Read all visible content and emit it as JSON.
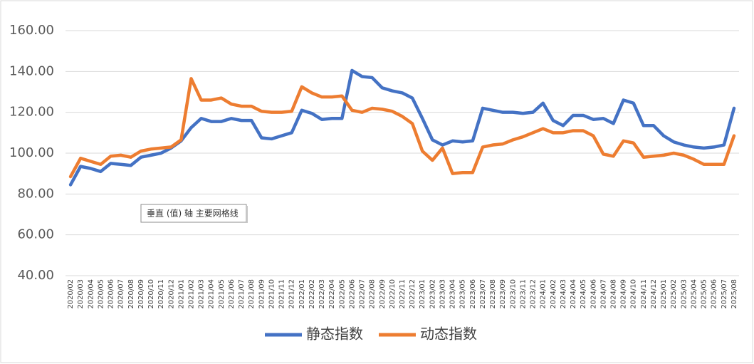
{
  "chart_data": {
    "type": "line",
    "categories": [
      "2020/02",
      "2020/03",
      "2020/04",
      "2020/05",
      "2020/06",
      "2020/07",
      "2020/08",
      "2020/09",
      "2020/10",
      "2020/11",
      "2020/12",
      "2021/01",
      "2021/02",
      "2021/03",
      "2021/04",
      "2021/05",
      "2021/06",
      "2021/07",
      "2021/08",
      "2021/09",
      "2021/10",
      "2021/11",
      "2021/12",
      "2022/01",
      "2022/02",
      "2022/03",
      "2022/04",
      "2022/05",
      "2022/06",
      "2022/07",
      "2022/08",
      "2022/09",
      "2022/10",
      "2022/11",
      "2022/12",
      "2023/01",
      "2023/02",
      "2023/03",
      "2023/04",
      "2023/05",
      "2023/06",
      "2023/07",
      "2023/08",
      "2023/09",
      "2023/10",
      "2023/11",
      "2023/12",
      "2024/01",
      "2024/02",
      "2024/03",
      "2024/04",
      "2024/05",
      "2024/06",
      "2024/07",
      "2024/08",
      "2024/09",
      "2024/10",
      "2024/11",
      "2024/12",
      "2025/01",
      "2025/02",
      "2025/03",
      "2025/04",
      "2025/05",
      "2025/06",
      "2025/07",
      "2025/08"
    ],
    "series": [
      {
        "name": "静态指数",
        "color": "#4472c4",
        "values": [
          84.5,
          93.5,
          92.5,
          91,
          95,
          94.5,
          94,
          98,
          99,
          100,
          102.5,
          106,
          112.5,
          117,
          115.5,
          115.5,
          117,
          116,
          116,
          107.5,
          107,
          108.5,
          110,
          121,
          119.5,
          116.5,
          117,
          117,
          140.5,
          137.5,
          137,
          132,
          130.5,
          129.5,
          127,
          117,
          106.5,
          104,
          106,
          105.5,
          106,
          122,
          121,
          120,
          120,
          119.5,
          120,
          124.5,
          116,
          113.5,
          118.5,
          118.5,
          116.5,
          117,
          114.5,
          126,
          124.5,
          113.5,
          113.5,
          108.5,
          105.5,
          104,
          103,
          102.5,
          103,
          104,
          122
        ]
      },
      {
        "name": "动态指数",
        "color": "#ed7d31",
        "values": [
          88.5,
          97.5,
          96,
          94.5,
          98.5,
          99,
          98,
          101,
          102,
          102.5,
          103,
          106.5,
          136.5,
          126,
          126,
          127,
          124,
          123,
          123,
          120.5,
          120,
          120,
          120.5,
          132.5,
          129.5,
          127.5,
          127.5,
          128,
          121,
          120,
          122,
          121.5,
          120.5,
          118,
          114.5,
          101,
          96.5,
          102.5,
          90,
          90.5,
          90.5,
          103,
          104,
          104.5,
          106.5,
          108,
          110,
          112,
          110,
          110,
          111,
          111,
          108.5,
          99.5,
          98.5,
          106,
          105,
          98,
          98.5,
          99,
          100,
          99,
          97,
          94.5,
          94.5,
          94.5,
          108.5
        ]
      }
    ],
    "ylim": [
      40,
      160
    ],
    "yticks": [
      {
        "value": 40,
        "label": "40.00"
      },
      {
        "value": 60,
        "label": "60.00"
      },
      {
        "value": 80,
        "label": "80.00"
      },
      {
        "value": 100,
        "label": "100.00"
      },
      {
        "value": 120,
        "label": "120.00"
      },
      {
        "value": 140,
        "label": "140.00"
      },
      {
        "value": 160,
        "label": "160.00"
      }
    ],
    "grid": true,
    "legend": "bottom",
    "tooltip": "垂直 (值) 轴 主要网格线"
  }
}
